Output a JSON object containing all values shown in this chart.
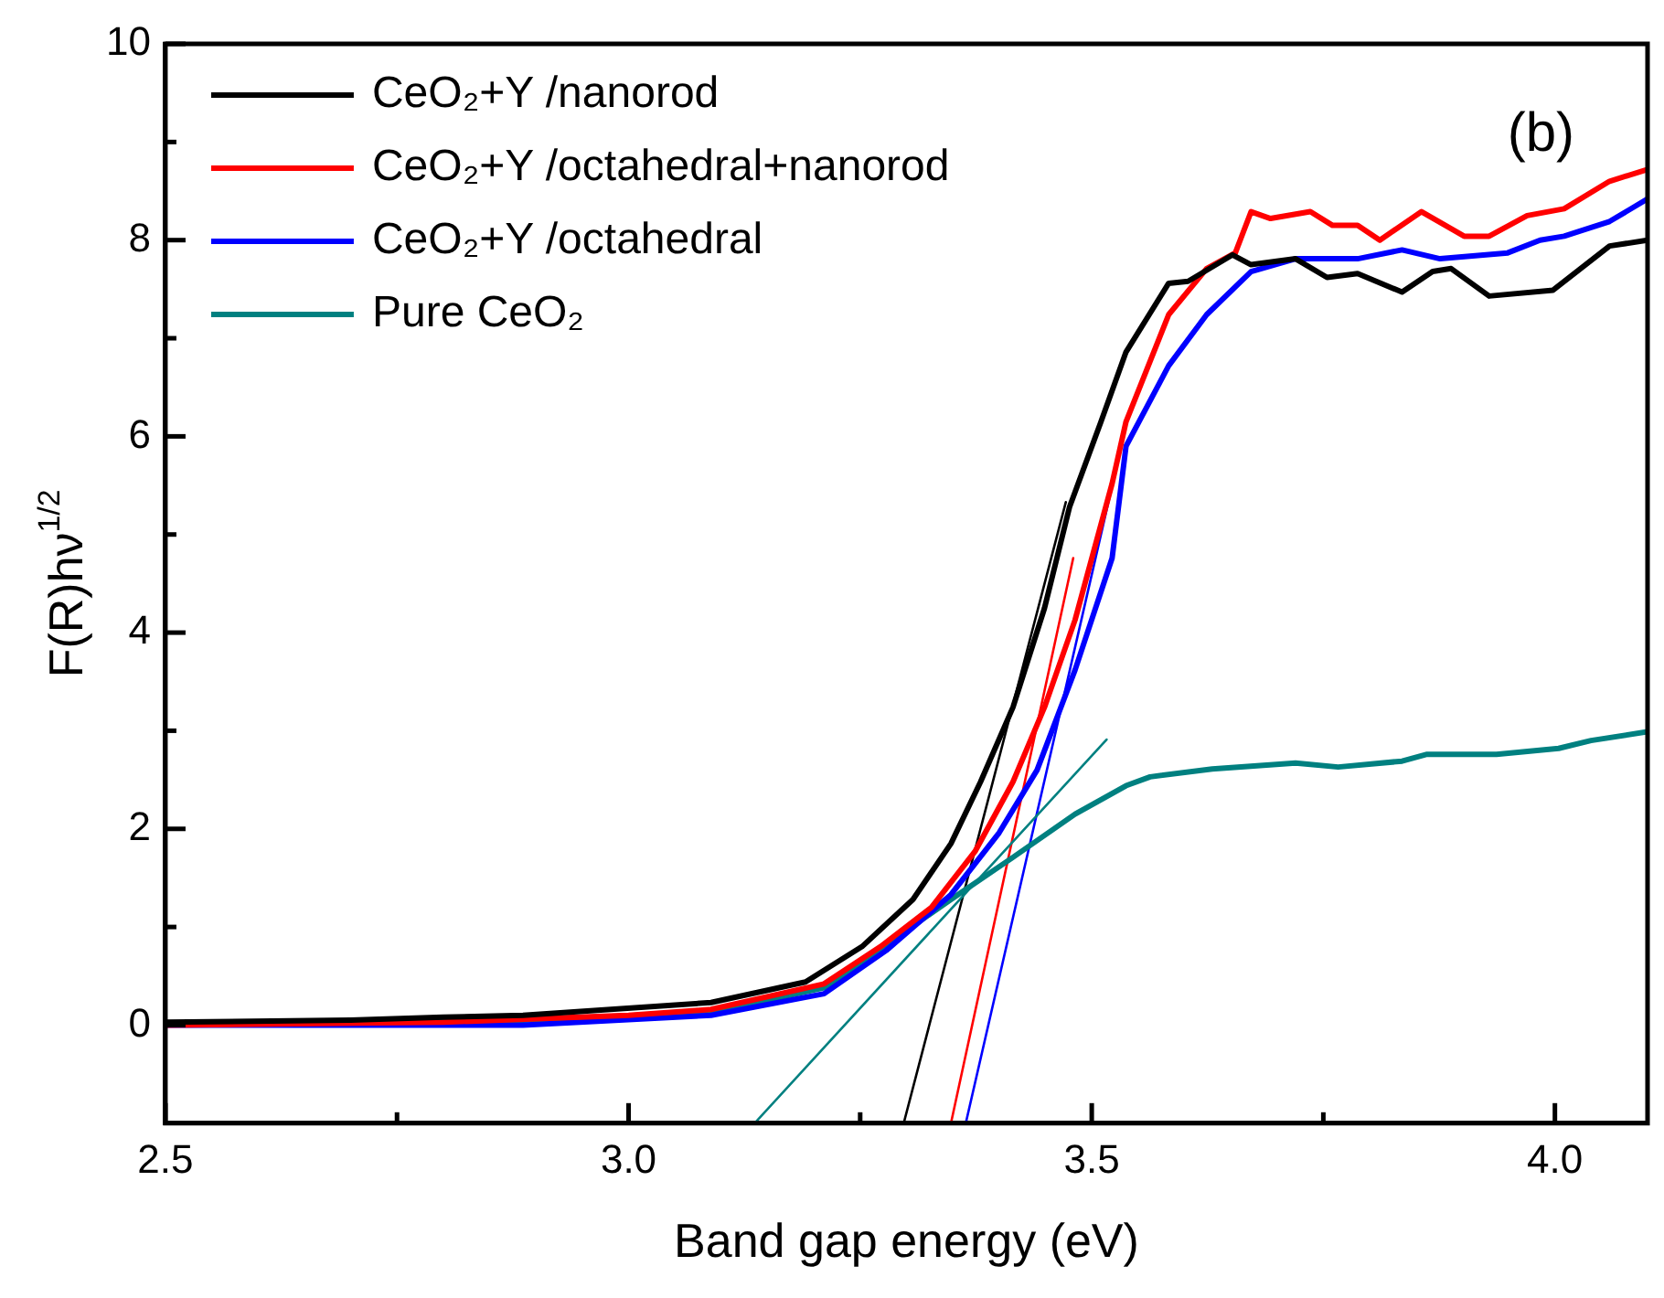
{
  "chart_data": {
    "type": "line",
    "xlabel": "Band gap energy (eV)",
    "ylabel": "F(R)hν$^{1/2}$",
    "xlim": [
      2.5,
      4.1
    ],
    "xticks": [
      2.5,
      {
        "value": 2.75,
        "label": null
      },
      {
        "value": 3,
        "label": "3.0"
      },
      {
        "value": 3.25,
        "label": null
      },
      3.5,
      {
        "value": 3.75,
        "label": null
      },
      {
        "value": 4,
        "label": "4.0"
      }
    ],
    "ylim": [
      -1,
      10
    ],
    "yticks": [
      0,
      {
        "value": 1,
        "label": null
      },
      2,
      {
        "value": 3,
        "label": null
      },
      4,
      {
        "value": 5,
        "label": null
      },
      6,
      {
        "value": 7,
        "label": null
      },
      8,
      {
        "value": 9,
        "label": null
      },
      10
    ],
    "grid": false,
    "legend": "top left",
    "marker": "none",
    "line_style": "solid",
    "annotations": [
      "(b)"
    ],
    "series": [
      {
        "name": "CeO₂+Y /nanorod",
        "color": "#000000",
        "x": [
          2.5,
          2.7,
          2.8,
          2.886,
          3.089,
          3.191,
          3.252,
          3.307,
          3.348,
          3.38,
          3.415,
          3.449,
          3.476,
          3.51,
          3.537,
          3.583,
          3.604,
          3.652,
          3.672,
          3.72,
          3.754,
          3.787,
          3.835,
          3.868,
          3.888,
          3.929,
          3.998,
          4.059,
          4.1
        ],
        "values": [
          0.03,
          0.05,
          0.08,
          0.1,
          0.23,
          0.44,
          0.8,
          1.28,
          1.85,
          2.48,
          3.24,
          4.25,
          5.28,
          6.15,
          6.86,
          7.56,
          7.58,
          7.85,
          7.75,
          7.81,
          7.62,
          7.66,
          7.47,
          7.68,
          7.71,
          7.43,
          7.49,
          7.94,
          8.0
        ]
      },
      {
        "name": "CeO₂+Y /octahedral+nanorod",
        "color": "#ff0000",
        "x": [
          2.5,
          2.8,
          3.0,
          3.089,
          3.211,
          3.272,
          3.327,
          3.374,
          3.415,
          3.449,
          3.482,
          3.522,
          3.537,
          3.583,
          3.624,
          3.655,
          3.672,
          3.693,
          3.736,
          3.76,
          3.787,
          3.811,
          3.856,
          3.902,
          3.929,
          3.97,
          4.01,
          4.059,
          4.1
        ],
        "values": [
          0.0,
          0.03,
          0.1,
          0.16,
          0.42,
          0.8,
          1.2,
          1.77,
          2.48,
          3.24,
          4.13,
          5.52,
          6.15,
          7.24,
          7.71,
          7.87,
          8.29,
          8.22,
          8.29,
          8.15,
          8.15,
          8.0,
          8.29,
          8.04,
          8.04,
          8.25,
          8.32,
          8.6,
          8.72
        ]
      },
      {
        "name": "CeO₂+Y /octahedral",
        "color": "#0000ff",
        "x": [
          2.5,
          2.886,
          3.089,
          3.211,
          3.278,
          3.348,
          3.4,
          3.441,
          3.482,
          3.522,
          3.537,
          3.583,
          3.624,
          3.672,
          3.72,
          3.787,
          3.835,
          3.876,
          3.949,
          3.984,
          4.01,
          4.059,
          4.1
        ],
        "values": [
          0.0,
          0.0,
          0.1,
          0.32,
          0.76,
          1.33,
          1.96,
          2.6,
          3.62,
          4.76,
          5.9,
          6.72,
          7.24,
          7.68,
          7.81,
          7.81,
          7.9,
          7.81,
          7.87,
          8.0,
          8.04,
          8.19,
          8.42
        ]
      },
      {
        "name": "Pure CeO₂",
        "color": "#008080",
        "x": [
          2.5,
          2.886,
          3.089,
          3.211,
          3.278,
          3.348,
          3.415,
          3.482,
          3.537,
          3.563,
          3.63,
          3.72,
          3.766,
          3.835,
          3.862,
          3.937,
          4.004,
          4.039,
          4.1
        ],
        "values": [
          0.02,
          0.05,
          0.13,
          0.38,
          0.82,
          1.28,
          1.71,
          2.15,
          2.44,
          2.53,
          2.61,
          2.67,
          2.63,
          2.69,
          2.76,
          2.76,
          2.82,
          2.9,
          2.99
        ]
      },
      {
        "color": "#008080",
        "x": [
          3.136,
          3.516
        ],
        "values": [
          -1.0,
          2.91
        ]
      },
      {
        "color": "#000000",
        "x": [
          3.297,
          3.472
        ],
        "values": [
          -1.0,
          5.33
        ]
      },
      {
        "color": "#ff0000",
        "x": [
          3.348,
          3.48
        ],
        "values": [
          -1.0,
          4.76
        ]
      },
      {
        "color": "#0000ff",
        "x": [
          3.364,
          3.526
        ],
        "values": [
          -1.0,
          5.66
        ]
      }
    ]
  }
}
